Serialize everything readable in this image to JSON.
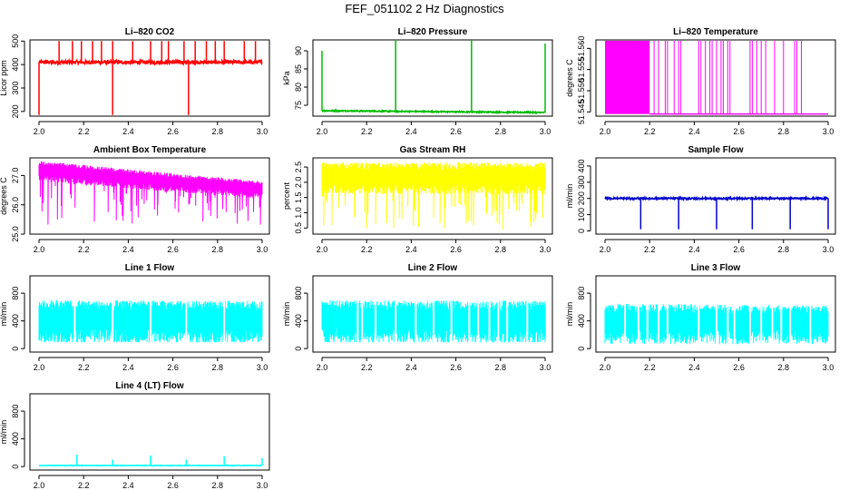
{
  "title": "FEF_051102  2 Hz Diagnostics",
  "chart_data": [
    {
      "type": "line",
      "title": "Li–820 CO2",
      "ylabel": "Licor ppm",
      "color": "#ff0000",
      "xlim": [
        2.0,
        3.0
      ],
      "ylim": [
        180,
        505
      ],
      "xticks": [
        "2.0",
        "2.2",
        "2.4",
        "2.6",
        "2.8",
        "3.0"
      ],
      "yticks": [
        "200",
        "300",
        "400",
        "500"
      ],
      "ytick_values": [
        200,
        300,
        400,
        500
      ],
      "series": [
        {
          "name": "co2",
          "pattern": "flat_noise",
          "base": 410,
          "noise": 8,
          "spikes": [
            {
              "x": 2.0,
              "y": 185
            },
            {
              "x": 2.09,
              "y": 500
            },
            {
              "x": 2.15,
              "y": 500
            },
            {
              "x": 2.19,
              "y": 500
            },
            {
              "x": 2.24,
              "y": 500
            },
            {
              "x": 2.28,
              "y": 500
            },
            {
              "x": 2.33,
              "y": 185
            },
            {
              "x": 2.33,
              "y": 500
            },
            {
              "x": 2.42,
              "y": 500
            },
            {
              "x": 2.5,
              "y": 500
            },
            {
              "x": 2.55,
              "y": 500
            },
            {
              "x": 2.58,
              "y": 500
            },
            {
              "x": 2.65,
              "y": 500
            },
            {
              "x": 2.67,
              "y": 185
            },
            {
              "x": 2.7,
              "y": 500
            },
            {
              "x": 2.75,
              "y": 500
            },
            {
              "x": 2.79,
              "y": 500
            },
            {
              "x": 2.83,
              "y": 500
            },
            {
              "x": 2.92,
              "y": 500
            },
            {
              "x": 2.97,
              "y": 500
            }
          ]
        }
      ]
    },
    {
      "type": "line",
      "title": "Li–820 Pressure",
      "ylabel": "kPa",
      "color": "#00bb00",
      "xlim": [
        2.0,
        3.0
      ],
      "ylim": [
        72,
        93
      ],
      "xticks": [
        "2.0",
        "2.2",
        "2.4",
        "2.6",
        "2.8",
        "3.0"
      ],
      "yticks": [
        "75",
        "80",
        "85",
        "90"
      ],
      "ytick_values": [
        75,
        80,
        85,
        90
      ],
      "series": [
        {
          "name": "pressure",
          "pattern": "decline",
          "start": 73.5,
          "end": 73.0,
          "spikes": [
            {
              "x": 2.0,
              "y": 90
            },
            {
              "x": 2.33,
              "y": 93
            },
            {
              "x": 2.67,
              "y": 93
            },
            {
              "x": 3.0,
              "y": 92
            }
          ]
        }
      ]
    },
    {
      "type": "line",
      "title": "Li–820 Temperature",
      "ylabel": "degrees C",
      "color": "#ff00ff",
      "xlim": [
        2.0,
        3.0
      ],
      "ylim": [
        51.544,
        51.562
      ],
      "xticks": [
        "2.0",
        "2.2",
        "2.4",
        "2.6",
        "2.8",
        "3.0"
      ],
      "yticks": [
        "51.545",
        "51.550",
        "51.555",
        "51.560"
      ],
      "ytick_values": [
        51.545,
        51.55,
        51.555,
        51.56
      ],
      "series": [
        {
          "name": "licor_temp",
          "pattern": "toggle",
          "low": 51.5445,
          "high": 51.5618,
          "dense_until": 2.2,
          "toggles": [
            2.22,
            2.24,
            2.27,
            2.28,
            2.31,
            2.33,
            2.34,
            2.42,
            2.43,
            2.45,
            2.47,
            2.48,
            2.5,
            2.52,
            2.53,
            2.55,
            2.56,
            2.65,
            2.66,
            2.68,
            2.7,
            2.72,
            2.76,
            2.8,
            2.85,
            2.86,
            2.88
          ]
        }
      ]
    },
    {
      "type": "line",
      "title": "Ambient Box Temperature",
      "ylabel": "degrees C",
      "color": "#ff00ff",
      "xlim": [
        2.0,
        3.0
      ],
      "ylim": [
        25.0,
        27.6
      ],
      "xticks": [
        "2.0",
        "2.2",
        "2.4",
        "2.6",
        "2.8",
        "3.0"
      ],
      "yticks": [
        "25.0",
        "26.0",
        "27.0"
      ],
      "ytick_values": [
        25.0,
        26.0,
        27.0
      ],
      "series": [
        {
          "name": "box_temp",
          "pattern": "band",
          "hi_start": 27.5,
          "hi_end": 26.8,
          "lo_start": 26.8,
          "lo_end": 26.2,
          "dip_min": 25.3
        }
      ]
    },
    {
      "type": "line",
      "title": "Gas Stream RH",
      "ylabel": "percent",
      "color": "#ffff00",
      "xlim": [
        2.0,
        3.0
      ],
      "ylim": [
        0.3,
        2.8
      ],
      "xticks": [
        "2.0",
        "2.2",
        "2.4",
        "2.6",
        "2.8",
        "3.0"
      ],
      "yticks": [
        "0.5",
        "1.0",
        "1.5",
        "2.0",
        "2.5"
      ],
      "ytick_values": [
        0.5,
        1.0,
        1.5,
        2.0,
        2.5
      ],
      "series": [
        {
          "name": "rh",
          "pattern": "band",
          "hi_start": 2.65,
          "hi_end": 2.65,
          "lo_start": 1.6,
          "lo_end": 1.6,
          "dip_min": 0.45
        }
      ]
    },
    {
      "type": "line",
      "title": "Sample Flow",
      "ylabel": "ml/min",
      "color": "#0000cc",
      "xlim": [
        2.0,
        3.0
      ],
      "ylim": [
        -20,
        450
      ],
      "xticks": [
        "2.0",
        "2.2",
        "2.4",
        "2.6",
        "2.8",
        "3.0"
      ],
      "yticks": [
        "0",
        "100",
        "200",
        "300",
        "400"
      ],
      "ytick_values": [
        0,
        100,
        200,
        300,
        400
      ],
      "series": [
        {
          "name": "sample_flow",
          "pattern": "flat_noise",
          "base": 200,
          "noise": 5,
          "spikes": [
            {
              "x": 2.16,
              "y": 10
            },
            {
              "x": 2.33,
              "y": 10
            },
            {
              "x": 2.5,
              "y": 10
            },
            {
              "x": 2.66,
              "y": 10
            },
            {
              "x": 2.83,
              "y": 10
            },
            {
              "x": 3.0,
              "y": 10
            }
          ]
        }
      ]
    },
    {
      "type": "line",
      "title": "Line 1 Flow",
      "ylabel": "ml/min",
      "color": "#00ffff",
      "xlim": [
        2.0,
        3.0
      ],
      "ylim": [
        -50,
        1050
      ],
      "xticks": [
        "2.0",
        "2.2",
        "2.4",
        "2.6",
        "2.8",
        "3.0"
      ],
      "yticks": [
        "0",
        "400",
        "800"
      ],
      "ytick_values": [
        0,
        400,
        800
      ],
      "series": [
        {
          "name": "line1",
          "pattern": "band",
          "hi_start": 700,
          "hi_end": 690,
          "lo_start": 90,
          "lo_end": 90,
          "dip_min": 90,
          "gaps": [
            2.16,
            2.33,
            2.5,
            2.66,
            2.83
          ]
        }
      ]
    },
    {
      "type": "line",
      "title": "Line 2 Flow",
      "ylabel": "ml/min",
      "color": "#00ffff",
      "xlim": [
        2.0,
        3.0
      ],
      "ylim": [
        -50,
        1050
      ],
      "xticks": [
        "2.0",
        "2.2",
        "2.4",
        "2.6",
        "2.8",
        "3.0"
      ],
      "yticks": [
        "0",
        "400",
        "800"
      ],
      "ytick_values": [
        0,
        400,
        800
      ],
      "series": [
        {
          "name": "line2",
          "pattern": "band",
          "hi_start": 700,
          "hi_end": 690,
          "lo_start": 90,
          "lo_end": 90,
          "dip_min": 90,
          "gaps": [
            2.16,
            2.18,
            2.24,
            2.33,
            2.42,
            2.5,
            2.58,
            2.66,
            2.7,
            2.75,
            2.79,
            2.83,
            2.92
          ]
        }
      ]
    },
    {
      "type": "line",
      "title": "Line 3 Flow",
      "ylabel": "ml/min",
      "color": "#00ffff",
      "xlim": [
        2.0,
        3.0
      ],
      "ylim": [
        -50,
        1050
      ],
      "xticks": [
        "2.0",
        "2.2",
        "2.4",
        "2.6",
        "2.8",
        "3.0"
      ],
      "yticks": [
        "0",
        "400",
        "800"
      ],
      "ytick_values": [
        0,
        400,
        800
      ],
      "series": [
        {
          "name": "line3",
          "pattern": "band",
          "hi_start": 650,
          "hi_end": 620,
          "lo_start": 90,
          "lo_end": 90,
          "dip_min": 60,
          "gaps": [
            2.09,
            2.15,
            2.19,
            2.24,
            2.28,
            2.42,
            2.5,
            2.55,
            2.58,
            2.65,
            2.7,
            2.75,
            2.79,
            2.83,
            2.92
          ]
        }
      ]
    },
    {
      "type": "line",
      "title": "Line 4 (LT) Flow",
      "ylabel": "ml/min",
      "color": "#00ffff",
      "xlim": [
        2.0,
        3.0
      ],
      "ylim": [
        -50,
        1050
      ],
      "xticks": [
        "2.0",
        "2.2",
        "2.4",
        "2.6",
        "2.8",
        "3.0"
      ],
      "yticks": [
        "0",
        "400",
        "800"
      ],
      "ytick_values": [
        0,
        400,
        800
      ],
      "series": [
        {
          "name": "line4",
          "pattern": "flat_noise",
          "base": 15,
          "noise": 3,
          "spikes": [
            {
              "x": 2.17,
              "y": 170
            },
            {
              "x": 2.33,
              "y": 100
            },
            {
              "x": 2.5,
              "y": 160
            },
            {
              "x": 2.66,
              "y": 100
            },
            {
              "x": 2.83,
              "y": 150
            },
            {
              "x": 3.0,
              "y": 120
            }
          ]
        }
      ]
    }
  ]
}
